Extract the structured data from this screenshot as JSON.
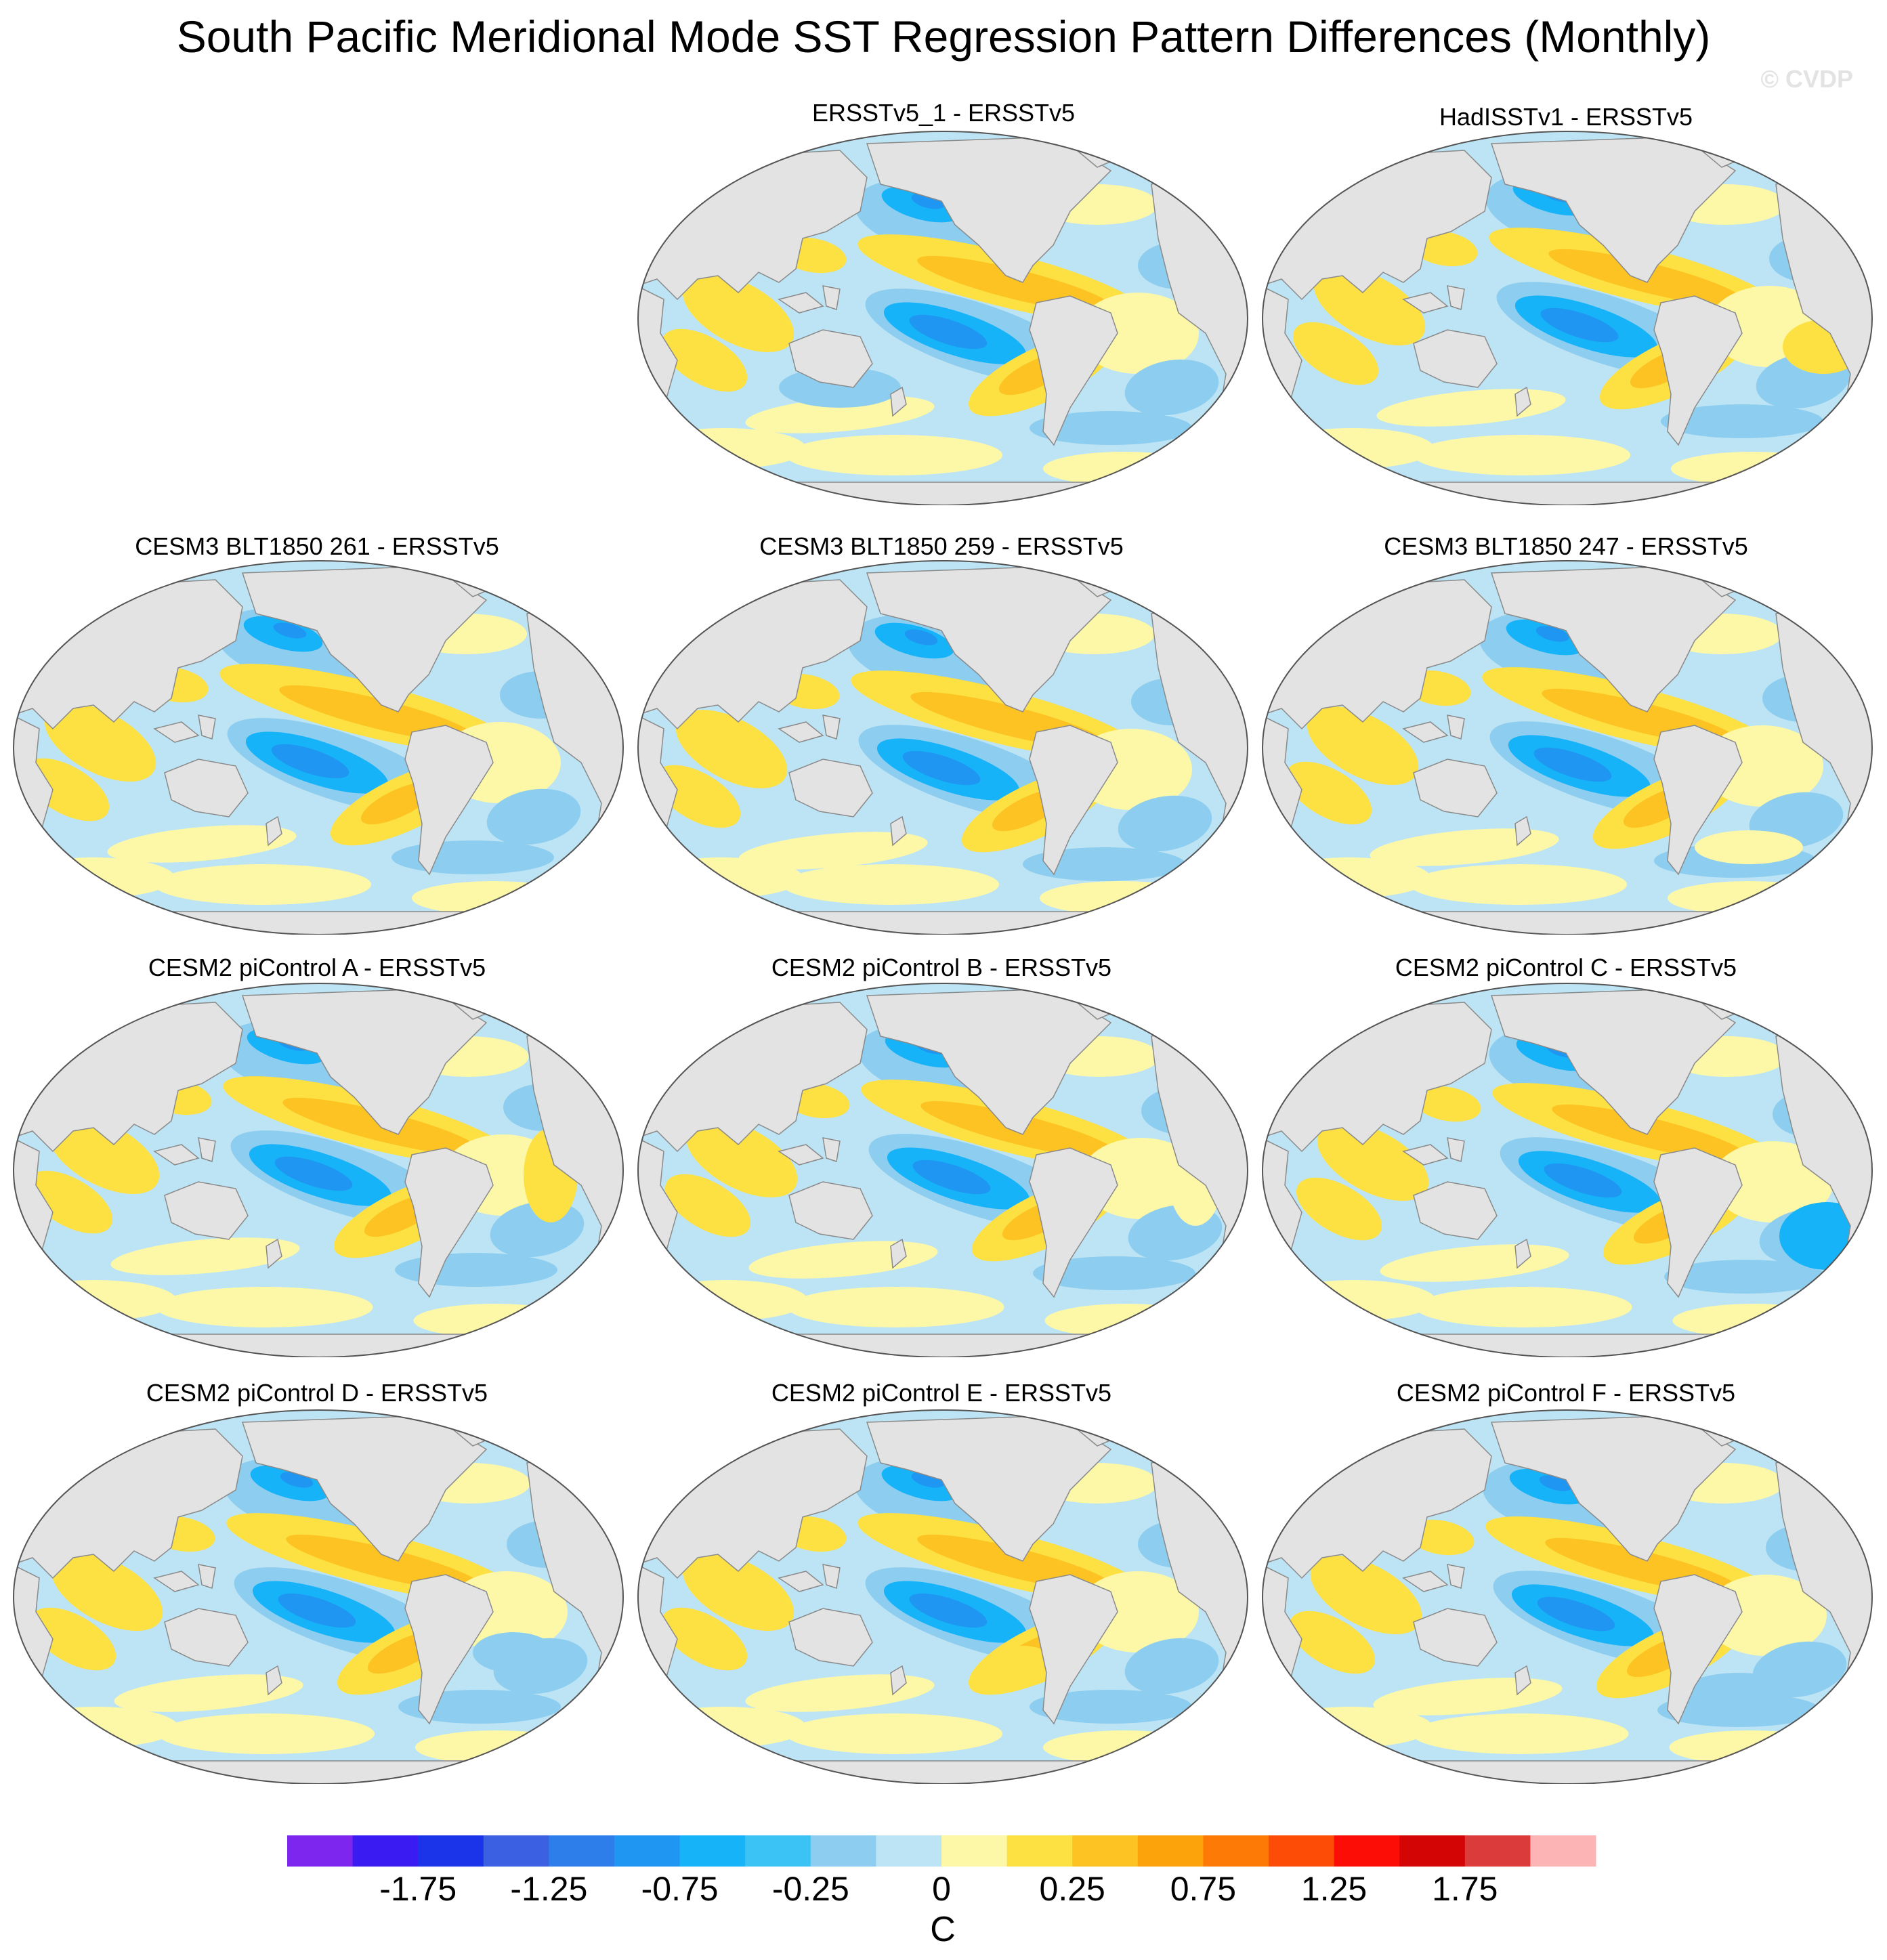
{
  "title": "South Pacific Meridional Mode SST Regression Pattern Differences (Monthly)",
  "watermark": "© CVDP",
  "panels": [
    {
      "label": "ERSSTv5_1 - ERSSTv5",
      "variant": 0
    },
    {
      "label": "HadISSTv1 - ERSSTv5",
      "variant": 1
    },
    {
      "label": "CESM3 BLT1850 261 - ERSSTv5",
      "variant": 2
    },
    {
      "label": "CESM3 BLT1850 259 - ERSSTv5",
      "variant": 3
    },
    {
      "label": "CESM3 BLT1850 247 - ERSSTv5",
      "variant": 4
    },
    {
      "label": "CESM2 piControl A - ERSSTv5",
      "variant": 5
    },
    {
      "label": "CESM2 piControl B - ERSSTv5",
      "variant": 6
    },
    {
      "label": "CESM2 piControl C - ERSSTv5",
      "variant": 7
    },
    {
      "label": "CESM2 piControl D - ERSSTv5",
      "variant": 8
    },
    {
      "label": "CESM2 piControl E - ERSSTv5",
      "variant": 9
    },
    {
      "label": "CESM2 piControl F - ERSSTv5",
      "variant": 10
    }
  ],
  "colorbar": {
    "unit": "C",
    "tick_labels": [
      "-1.75",
      "-1.25",
      "-0.75",
      "-0.25",
      "0",
      "0.25",
      "0.75",
      "1.25",
      "1.75"
    ],
    "colors": [
      "#7d26ee",
      "#3a1cf2",
      "#1c34e9",
      "#3c60e2",
      "#2d7deb",
      "#1e96f2",
      "#16b3f8",
      "#3cc3f5",
      "#8dcdef",
      "#bde4f5",
      "#fdf8a8",
      "#fde042",
      "#fcc323",
      "#fca30c",
      "#fc7a05",
      "#fc4c05",
      "#fc0d05",
      "#d40505",
      "#dc3b3b",
      "#fcb4b4"
    ]
  },
  "chart_data": {
    "type": "heatmap",
    "title": "South Pacific Meridional Mode SST Regression Pattern Differences (Monthly)",
    "projection": "global map, Pacific-centered",
    "panels": [
      "ERSSTv5_1 - ERSSTv5",
      "HadISSTv1 - ERSSTv5",
      "CESM3 BLT1850 261 - ERSSTv5",
      "CESM3 BLT1850 259 - ERSSTv5",
      "CESM3 BLT1850 247 - ERSSTv5",
      "CESM2 piControl A - ERSSTv5",
      "CESM2 piControl B - ERSSTv5",
      "CESM2 piControl C - ERSSTv5",
      "CESM2 piControl D - ERSSTv5",
      "CESM2 piControl E - ERSSTv5",
      "CESM2 piControl F - ERSSTv5"
    ],
    "colorbar_levels": [
      -2,
      -1.75,
      -1.5,
      -1.25,
      -1,
      -0.75,
      -0.5,
      -0.25,
      -0.1,
      0,
      0.1,
      0.25,
      0.5,
      0.75,
      1,
      1.25,
      1.5,
      1.75,
      2
    ],
    "colorbar_unit": "C",
    "value_range": [
      -2,
      2
    ]
  }
}
